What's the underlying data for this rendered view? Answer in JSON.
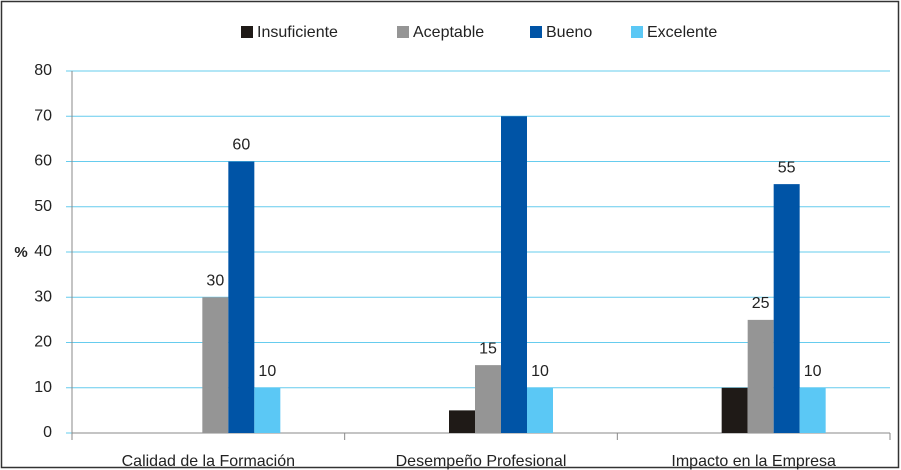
{
  "chart_data": {
    "type": "bar",
    "y_label": "%",
    "categories": [
      "Calidad de la Formación",
      "Desempeño Profesional",
      "Impacto en la Empresa"
    ],
    "series": [
      {
        "name": "Insuficiente",
        "color": "#1f1a17",
        "values": [
          0,
          5,
          10
        ],
        "value_labels": [
          null,
          null,
          null
        ]
      },
      {
        "name": "Aceptable",
        "color": "#959595",
        "values": [
          30,
          15,
          25
        ],
        "value_labels": [
          "30",
          "15",
          "25"
        ]
      },
      {
        "name": "Bueno",
        "color": "#0054a6",
        "values": [
          60,
          70,
          55
        ],
        "value_labels": [
          "60",
          null,
          "55"
        ]
      },
      {
        "name": "Excelente",
        "color": "#5bc8f5",
        "values": [
          10,
          10,
          10
        ],
        "value_labels": [
          "10",
          "10",
          "10"
        ]
      }
    ],
    "ylim": [
      0,
      80
    ],
    "yticks": [
      0,
      10,
      20,
      30,
      40,
      50,
      60,
      70,
      80
    ],
    "grid": true,
    "grid_color": "#66ccee",
    "legend": "top"
  }
}
